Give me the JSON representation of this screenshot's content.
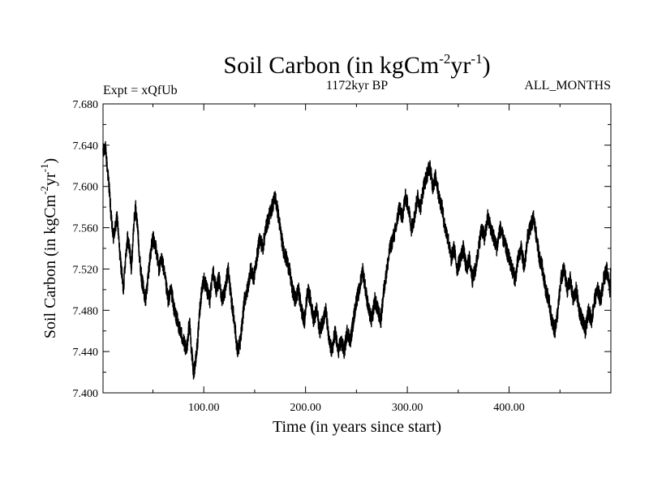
{
  "chart_data": {
    "type": "line",
    "title": "Soil Carbon (in kgCm",
    "title_sup1": "-2",
    "title_mid": "yr",
    "title_sup2": "-1",
    "title_end": ")",
    "subtitle_left": "Expt = xQfUb",
    "subtitle_center": "1172kyr BP",
    "subtitle_right": "ALL_MONTHS",
    "xlabel": "Time (in years since start)",
    "ylabel_main": "Soil Carbon (in kgCm",
    "ylabel_sup1": "-2",
    "ylabel_mid": "yr",
    "ylabel_sup2": "-1",
    "ylabel_end": ")",
    "xlim": [
      1,
      500
    ],
    "ylim": [
      7.4,
      7.68
    ],
    "x_ticks": [
      {
        "value": 100,
        "label": "100.00"
      },
      {
        "value": 200,
        "label": "200.00"
      },
      {
        "value": 300,
        "label": "300.00"
      },
      {
        "value": 400,
        "label": "400.00"
      }
    ],
    "y_ticks": [
      {
        "value": 7.4,
        "label": "7.400"
      },
      {
        "value": 7.44,
        "label": "7.440"
      },
      {
        "value": 7.48,
        "label": "7.480"
      },
      {
        "value": 7.52,
        "label": "7.520"
      },
      {
        "value": 7.56,
        "label": "7.560"
      },
      {
        "value": 7.6,
        "label": "7.600"
      },
      {
        "value": 7.64,
        "label": "7.640"
      },
      {
        "value": 7.68,
        "label": "7.680"
      }
    ],
    "series": [
      {
        "name": "Soil Carbon",
        "color": "#000000",
        "x": [
          1,
          3,
          5,
          7,
          9,
          11,
          13,
          15,
          17,
          19,
          21,
          23,
          25,
          27,
          29,
          31,
          33,
          35,
          37,
          39,
          41,
          43,
          45,
          47,
          50,
          53,
          56,
          59,
          62,
          65,
          68,
          71,
          74,
          77,
          80,
          83,
          86,
          88,
          90,
          92,
          94,
          96,
          98,
          100,
          103,
          106,
          109,
          112,
          115,
          118,
          121,
          124,
          127,
          130,
          133,
          136,
          138,
          140,
          143,
          146,
          149,
          152,
          155,
          158,
          161,
          164,
          167,
          170,
          172,
          175,
          178,
          181,
          184,
          187,
          190,
          193,
          196,
          199,
          202,
          205,
          208,
          211,
          214,
          217,
          220,
          223,
          226,
          229,
          232,
          235,
          238,
          241,
          244,
          247,
          250,
          253,
          256,
          259,
          262,
          265,
          268,
          271,
          274,
          277,
          280,
          283,
          286,
          289,
          292,
          295,
          298,
          301,
          304,
          307,
          310,
          313,
          316,
          319,
          322,
          325,
          328,
          331,
          334,
          337,
          340,
          343,
          346,
          349,
          352,
          355,
          358,
          361,
          364,
          367,
          370,
          373,
          376,
          379,
          382,
          385,
          388,
          391,
          394,
          397,
          400,
          403,
          406,
          409,
          412,
          415,
          418,
          421,
          424,
          427,
          430,
          433,
          436,
          439,
          442,
          445,
          448,
          451,
          454,
          457,
          460,
          463,
          466,
          469,
          472,
          475,
          478,
          481,
          484,
          487,
          490,
          493,
          496,
          499,
          500
        ],
        "values": [
          7.63,
          7.64,
          7.62,
          7.6,
          7.57,
          7.55,
          7.56,
          7.57,
          7.54,
          7.52,
          7.5,
          7.53,
          7.55,
          7.54,
          7.52,
          7.56,
          7.58,
          7.56,
          7.53,
          7.51,
          7.5,
          7.49,
          7.51,
          7.53,
          7.55,
          7.54,
          7.52,
          7.53,
          7.51,
          7.49,
          7.5,
          7.48,
          7.47,
          7.46,
          7.45,
          7.44,
          7.47,
          7.44,
          7.42,
          7.43,
          7.45,
          7.48,
          7.5,
          7.51,
          7.5,
          7.49,
          7.52,
          7.5,
          7.51,
          7.49,
          7.5,
          7.52,
          7.49,
          7.47,
          7.44,
          7.45,
          7.47,
          7.49,
          7.5,
          7.52,
          7.51,
          7.53,
          7.55,
          7.54,
          7.56,
          7.57,
          7.58,
          7.59,
          7.58,
          7.56,
          7.54,
          7.53,
          7.52,
          7.5,
          7.49,
          7.5,
          7.48,
          7.47,
          7.5,
          7.49,
          7.47,
          7.48,
          7.46,
          7.47,
          7.48,
          7.45,
          7.44,
          7.46,
          7.44,
          7.45,
          7.44,
          7.46,
          7.45,
          7.47,
          7.49,
          7.5,
          7.52,
          7.5,
          7.48,
          7.47,
          7.49,
          7.48,
          7.47,
          7.5,
          7.52,
          7.54,
          7.55,
          7.56,
          7.58,
          7.57,
          7.59,
          7.58,
          7.56,
          7.57,
          7.59,
          7.58,
          7.6,
          7.61,
          7.62,
          7.6,
          7.61,
          7.59,
          7.58,
          7.56,
          7.55,
          7.53,
          7.54,
          7.52,
          7.53,
          7.54,
          7.52,
          7.53,
          7.51,
          7.52,
          7.54,
          7.56,
          7.55,
          7.57,
          7.56,
          7.55,
          7.54,
          7.56,
          7.55,
          7.54,
          7.53,
          7.52,
          7.51,
          7.53,
          7.54,
          7.52,
          7.55,
          7.56,
          7.57,
          7.55,
          7.53,
          7.52,
          7.5,
          7.49,
          7.47,
          7.46,
          7.48,
          7.51,
          7.52,
          7.5,
          7.51,
          7.49,
          7.5,
          7.48,
          7.47,
          7.46,
          7.48,
          7.47,
          7.49,
          7.5,
          7.49,
          7.51,
          7.52,
          7.5,
          7.52
        ]
      }
    ]
  }
}
